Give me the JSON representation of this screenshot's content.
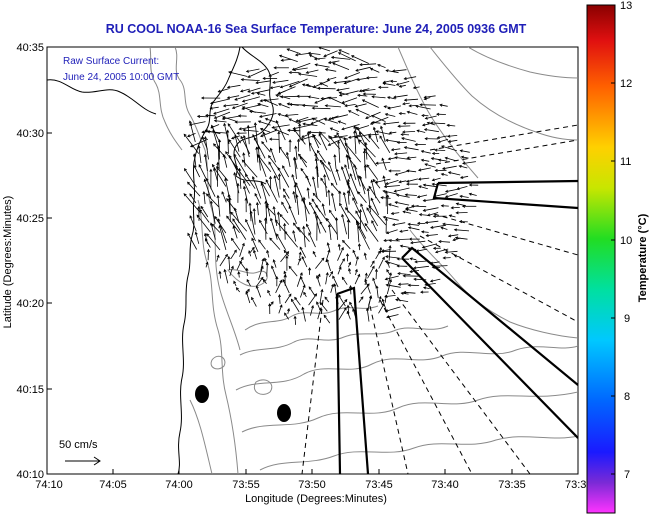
{
  "title": "RU COOL  NOAA-16  Sea Surface Temperature:  June 24, 2005 0936 GMT",
  "inset": {
    "line1": "Raw Surface Current:",
    "line2": "June 24, 2005 10:00 GMT"
  },
  "scale_label": "50 cm/s",
  "x_axis": {
    "label": "Longitude (Degrees:Minutes)",
    "ticks": [
      "74:10",
      "74:05",
      "74:00",
      "73:55",
      "73:50",
      "73:45",
      "73:40",
      "73:35",
      "73:3"
    ]
  },
  "y_axis": {
    "label": "Latitude (Degrees:Minutes)",
    "ticks": [
      "40:35",
      "40:30",
      "40:25",
      "40:20",
      "40:15",
      "40:10"
    ]
  },
  "colorbar": {
    "label": "Temperature (°C)",
    "ticks": [
      "13",
      "12",
      "11",
      "10",
      "9",
      "8",
      "7"
    ],
    "min": 6.5,
    "max": 13
  },
  "colors": {
    "title": "#1f1fb8",
    "inset_text": "#1f1fb8",
    "coast": "#000000",
    "contours": "#8a8a8a",
    "vectors": "#000000"
  },
  "chart_data": {
    "type": "map",
    "title": "RU COOL  NOAA-16  Sea Surface Temperature:  June 24, 2005 0936 GMT",
    "xlabel": "Longitude (Degrees:Minutes)",
    "ylabel": "Latitude (Degrees:Minutes)",
    "xlim_minutes_west": [
      74.1667,
      73.5
    ],
    "ylim_minutes_north": [
      40.1667,
      40.5833
    ],
    "vector_field": "raw surface current",
    "vector_time": "June 24, 2005 10:00 GMT",
    "vector_scale_cm_s": 50
  }
}
